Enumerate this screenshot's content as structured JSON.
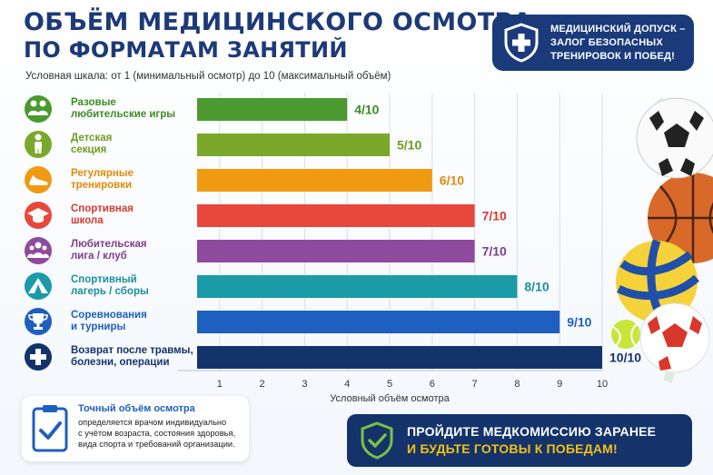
{
  "header": {
    "title_line1": "ОБЪЁМ МЕДИЦИНСКОГО ОСМОТРА",
    "title_line2": "ПО ФОРМАТАМ ЗАНЯТИЙ",
    "subtitle": "Условная шкала: от 1 (минимальный осмотр) до 10 (максимальный объём)"
  },
  "badge": {
    "line1": "МЕДИЦИНСКИЙ ДОПУСК –",
    "line2": "ЗАЛОГ БЕЗОПАСНЫХ",
    "line3": "ТРЕНИРОВОК И ПОБЕД!",
    "icon": "shield-cross-icon"
  },
  "chart_data": {
    "type": "bar",
    "orientation": "horizontal",
    "categories": [
      [
        "Разовые",
        "любительские игры"
      ],
      [
        "Детская",
        "секция"
      ],
      [
        "Регулярные",
        "тренировки"
      ],
      [
        "Спортивная",
        "школа"
      ],
      [
        "Любительская",
        "лига / клуб"
      ],
      [
        "Спортивный",
        "лагерь / сборы"
      ],
      [
        "Соревнования",
        "и турниры"
      ],
      [
        "Возврат после травмы,",
        "болезни, операции"
      ]
    ],
    "values": [
      4,
      5,
      6,
      7,
      7,
      8,
      9,
      10
    ],
    "value_labels": [
      "4/10",
      "5/10",
      "6/10",
      "7/10",
      "7/10",
      "8/10",
      "9/10",
      "10/10"
    ],
    "colors": [
      "#4a9a2f",
      "#7aa82a",
      "#f09a12",
      "#e8473c",
      "#8e4a9c",
      "#1b9aa8",
      "#1f5fbf",
      "#14336b"
    ],
    "label_colors": [
      "#3f8a26",
      "#6f9a22",
      "#e08a0a",
      "#d63a30",
      "#7e3d8c",
      "#1a8f9c",
      "#1f5fbf",
      "#14336b"
    ],
    "icons": [
      "people-icon",
      "child-icon",
      "sneaker-icon",
      "graduation-cap-icon",
      "team-icon",
      "tent-icon",
      "trophy-icon",
      "medical-cross-icon"
    ],
    "xlabel": "Условный объём осмотра",
    "xticks": [
      1,
      2,
      3,
      4,
      5,
      6,
      7,
      8,
      9,
      10
    ],
    "xlim": [
      0,
      10
    ],
    "grid": true
  },
  "note": {
    "title": "Точный объём осмотра",
    "line1": "определяется врачом индивидуально",
    "line2": "с учётом возраста, состояния здоровья,",
    "line3": "вида спорта и требований организации.",
    "icon": "clipboard-check-icon"
  },
  "cta": {
    "line1": "ПРОЙДИТЕ МЕДКОМИССИЮ ЗАРАНЕЕ",
    "line2": "И БУДЬТЕ ГОТОВЫ К ПОБЕДАМ!",
    "icon": "shield-check-icon"
  },
  "decor": {
    "balls": [
      "soccer-ball-icon",
      "basketball-icon",
      "volleyball-icon",
      "tennis-ball-icon",
      "handball-icon"
    ]
  }
}
